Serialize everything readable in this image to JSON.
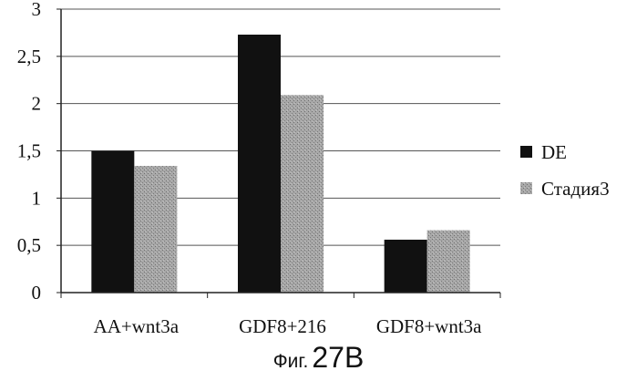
{
  "chart_data": {
    "type": "bar",
    "categories": [
      "AA+wnt3a",
      "GDF8+216",
      "GDF8+wnt3a"
    ],
    "series": [
      {
        "name": "DE",
        "values": [
          1.5,
          2.73,
          0.56
        ],
        "color": "#111111"
      },
      {
        "name": "Стадия3",
        "values": [
          1.34,
          2.09,
          0.66
        ],
        "color": "#9a9a9a"
      }
    ],
    "yticks": [
      "0",
      "0,5",
      "1",
      "1,5",
      "2",
      "2,5",
      "3"
    ],
    "ylim": [
      0,
      3
    ],
    "grid": true,
    "legend": "right"
  },
  "caption": {
    "prefix": "Фиг.",
    "number": "27B"
  }
}
